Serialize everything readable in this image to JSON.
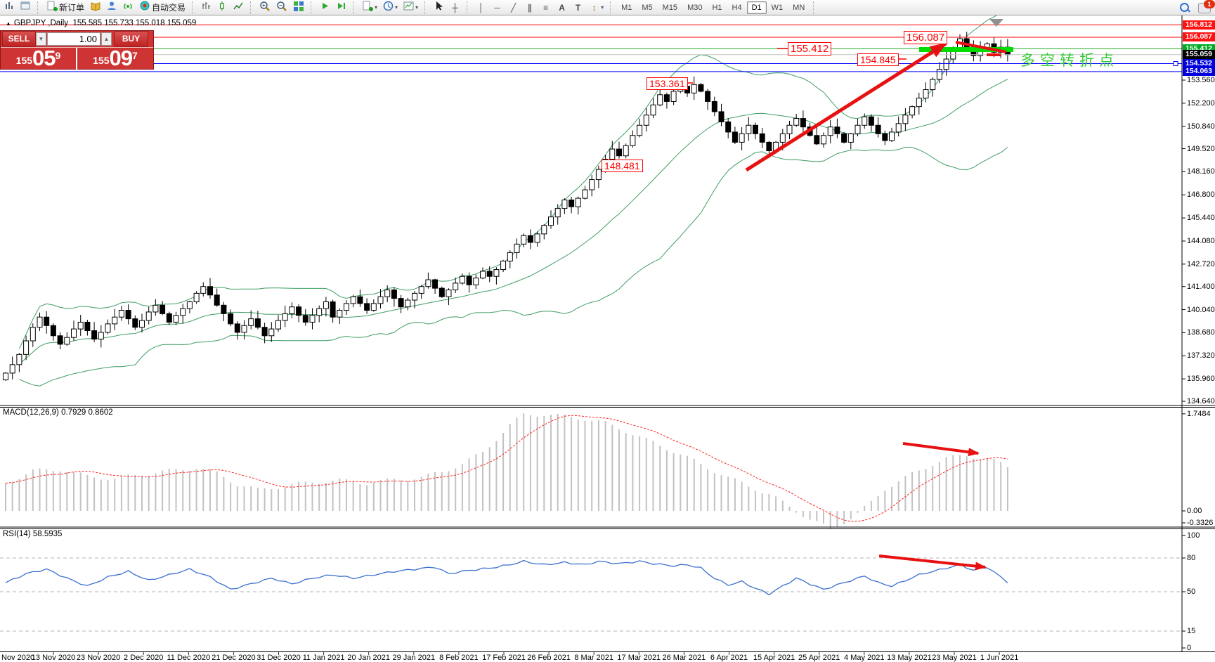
{
  "window": {
    "notification_count": "1"
  },
  "toolbar": {
    "groups": [
      [
        {
          "name": "new-chart-icon",
          "icon": "bars2",
          "color": "#6b7f93"
        },
        {
          "name": "profiles-icon",
          "icon": "window",
          "color": "#6b7f93"
        }
      ],
      [
        {
          "name": "new-order-button",
          "icon": "plusdoc",
          "label": "新订单"
        },
        {
          "name": "history-center-icon",
          "icon": "book",
          "color": "#d9a21b"
        },
        {
          "name": "market-watch-icon",
          "icon": "person",
          "color": "#3b74c9"
        },
        {
          "name": "signals-icon",
          "icon": "signal",
          "color": "#2faa2f"
        },
        {
          "name": "auto-trading-button",
          "icon": "robot",
          "label": "自动交易"
        }
      ],
      [
        {
          "name": "bar-chart-icon",
          "icon": "bars"
        },
        {
          "name": "candlestick-chart-icon",
          "icon": "candle"
        },
        {
          "name": "line-chart-icon",
          "icon": "linechart"
        }
      ],
      [
        {
          "name": "zoom-in-icon",
          "icon": "zoomin"
        },
        {
          "name": "zoom-out-icon",
          "icon": "zoomout"
        },
        {
          "name": "tile-windows-icon",
          "icon": "tiles"
        }
      ],
      [
        {
          "name": "auto-scroll-icon",
          "icon": "play"
        },
        {
          "name": "chart-shift-icon",
          "icon": "shift"
        }
      ],
      [
        {
          "name": "indicators-icon",
          "icon": "plusdoc",
          "caret": true
        },
        {
          "name": "periods-icon",
          "icon": "clock",
          "caret": true
        },
        {
          "name": "templates-icon",
          "icon": "template",
          "caret": true
        }
      ],
      [
        {
          "name": "cursor-icon",
          "icon": "cursor"
        },
        {
          "name": "crosshair-icon",
          "glyph": "┼",
          "color": "#333"
        }
      ],
      [
        {
          "name": "vertical-line-icon",
          "glyph": "│",
          "color": "#555"
        },
        {
          "name": "horizontal-line-icon",
          "glyph": "─",
          "color": "#555"
        },
        {
          "name": "trendline-icon",
          "glyph": "╱",
          "color": "#555"
        },
        {
          "name": "equidistant-channel-icon",
          "glyph": "∥",
          "color": "#555"
        },
        {
          "name": "fibonacci-icon",
          "glyph": "≡",
          "color": "#555"
        },
        {
          "name": "text-icon",
          "glyph": "A",
          "color": "#444"
        },
        {
          "name": "label-icon",
          "glyph": "T",
          "color": "#444"
        },
        {
          "name": "arrows-icon",
          "glyph": "↕",
          "color": "#b06a2a",
          "caret": true
        }
      ]
    ],
    "timeframes": [
      "M1",
      "M5",
      "M15",
      "M30",
      "H1",
      "H4",
      "D1",
      "W1",
      "MN"
    ],
    "active_timeframe": "D1"
  },
  "chart": {
    "symbol_period": "GBPJPY ,Daily",
    "ohlc": "155.585 155.733 155.018 155.059"
  },
  "trade_panel": {
    "sell_label": "SELL",
    "buy_label": "BUY",
    "volume": "1.00",
    "bid": {
      "prefix": "155",
      "big": "05",
      "sup": "9"
    },
    "ask": {
      "prefix": "155",
      "big": "09",
      "sup": "7"
    }
  },
  "annotations": {
    "box_156087": "156.087",
    "box_155412": "155.412",
    "box_154845": "154.845",
    "box_153361": "153.361",
    "box_148481": "148.481",
    "note_cn": "多空转折点"
  },
  "indicators": {
    "macd_title": "MACD(12,26,9)",
    "macd_main": "0.7929",
    "macd_signal": "0.8602",
    "rsi_title": "RSI(14)",
    "rsi_value": "58.5935"
  },
  "axis": {
    "main_ticks": [
      "153.560",
      "152.200",
      "150.840",
      "149.520",
      "148.160",
      "146.800",
      "145.440",
      "144.080",
      "142.720",
      "141.400",
      "140.040",
      "138.680",
      "137.320",
      "135.960",
      "134.640"
    ],
    "badges": [
      {
        "text": "156.812",
        "price": 156.812,
        "bg": "#ff1111"
      },
      {
        "text": "156.087",
        "price": 156.087,
        "bg": "#ff1111"
      },
      {
        "text": "155.412",
        "price": 155.412,
        "bg": "#00aa22"
      },
      {
        "text": "155.059",
        "price": 155.059,
        "bg": "#000000"
      },
      {
        "text": "154.532",
        "price": 154.532,
        "bg": "#0000dd"
      },
      {
        "text": "154.063",
        "price": 154.063,
        "bg": "#0000dd"
      }
    ],
    "macd_ticks": [
      {
        "text": "1.7484",
        "v": 1.7484
      },
      {
        "text": "0.00",
        "v": 0
      },
      {
        "text": "-0.3326",
        "v": -0.3326
      }
    ],
    "rsi_ticks": [
      {
        "text": "100",
        "v": 100
      },
      {
        "text": "80",
        "v": 80
      },
      {
        "text": "50",
        "v": 50
      },
      {
        "text": "15",
        "v": 15
      },
      {
        "text": "0",
        "v": 0
      }
    ]
  },
  "dates": [
    "Nov 2020",
    "13 Nov 2020",
    "23 Nov 2020",
    "2 Dec 2020",
    "11 Dec 2020",
    "21 Dec 2020",
    "31 Dec 2020",
    "11 Jan 2021",
    "20 Jan 2021",
    "29 Jan 2021",
    "8 Feb 2021",
    "17 Feb 2021",
    "26 Feb 2021",
    "8 Mar 2021",
    "17 Mar 2021",
    "26 Mar 2021",
    "6 Apr 2021",
    "15 Apr 2021",
    "25 Apr 2021",
    "4 May 2021",
    "13 May 2021",
    "23 May 2021",
    "1 Jun 2021"
  ],
  "chart_data": {
    "type": "candlestick",
    "symbol": "GBPJPY",
    "timeframe": "Daily",
    "price_axis_range": [
      134.2,
      157.3
    ],
    "closes": [
      136.3,
      136.8,
      137.4,
      138.2,
      139.0,
      139.6,
      139.1,
      138.5,
      138.0,
      138.4,
      138.9,
      139.3,
      138.8,
      138.3,
      138.7,
      139.2,
      139.6,
      140.0,
      139.5,
      139.0,
      139.4,
      139.9,
      140.3,
      139.8,
      139.3,
      139.7,
      140.1,
      140.5,
      141.0,
      141.4,
      140.9,
      140.3,
      139.8,
      139.2,
      138.7,
      139.1,
      139.5,
      139.0,
      138.5,
      138.9,
      139.4,
      139.8,
      140.2,
      139.7,
      139.3,
      139.7,
      140.1,
      140.5,
      139.6,
      140.0,
      140.4,
      140.8,
      140.4,
      140.0,
      140.4,
      140.8,
      141.2,
      140.7,
      140.2,
      140.6,
      141.0,
      141.4,
      141.8,
      141.3,
      140.8,
      141.2,
      141.6,
      142.0,
      141.5,
      141.9,
      142.3,
      142.0,
      142.4,
      142.9,
      143.4,
      143.9,
      144.4,
      144.0,
      144.5,
      145.0,
      145.5,
      146.0,
      146.5,
      146.1,
      146.6,
      147.1,
      147.7,
      148.3,
      148.9,
      149.5,
      149.1,
      149.7,
      150.3,
      150.9,
      151.5,
      152.1,
      152.7,
      152.3,
      152.9,
      153.2,
      152.8,
      153.3,
      152.9,
      152.3,
      151.7,
      151.1,
      150.5,
      149.9,
      150.4,
      150.9,
      150.4,
      149.9,
      149.4,
      149.9,
      150.4,
      150.9,
      151.3,
      150.8,
      150.3,
      149.8,
      150.3,
      150.8,
      150.4,
      149.9,
      150.4,
      150.9,
      151.4,
      150.9,
      150.4,
      150.0,
      150.5,
      151.0,
      151.5,
      152.0,
      152.5,
      153.0,
      153.6,
      154.2,
      154.8,
      155.4,
      156.0,
      155.5,
      155.0,
      155.4,
      155.7,
      155.2,
      155.5,
      155.06
    ],
    "bollinger_period": 20,
    "hlines": [
      {
        "price": 156.812,
        "color": "#ff0000"
      },
      {
        "price": 156.087,
        "color": "#ff0000"
      },
      {
        "price": 155.412,
        "color": "#22aa22"
      },
      {
        "price": 155.059,
        "color": "#c4c4c4"
      },
      {
        "price": 154.532,
        "color": "#0000ff"
      },
      {
        "price": 154.063,
        "color": "#0000ff"
      }
    ],
    "macd": {
      "params": "12,26,9",
      "range": [
        -0.3326,
        1.7484
      ],
      "anchors": [
        [
          0,
          0.5
        ],
        [
          4,
          0.72
        ],
        [
          8,
          0.75
        ],
        [
          12,
          0.62
        ],
        [
          16,
          0.58
        ],
        [
          20,
          0.66
        ],
        [
          24,
          0.72
        ],
        [
          28,
          0.78
        ],
        [
          31,
          0.68
        ],
        [
          34,
          0.48
        ],
        [
          37,
          0.38
        ],
        [
          41,
          0.45
        ],
        [
          45,
          0.52
        ],
        [
          49,
          0.55
        ],
        [
          53,
          0.5
        ],
        [
          57,
          0.56
        ],
        [
          61,
          0.6
        ],
        [
          64,
          0.7
        ],
        [
          67,
          0.85
        ],
        [
          70,
          1.05
        ],
        [
          72,
          1.3
        ],
        [
          74,
          1.55
        ],
        [
          76,
          1.73
        ],
        [
          79,
          1.74
        ],
        [
          82,
          1.7
        ],
        [
          85,
          1.66
        ],
        [
          88,
          1.58
        ],
        [
          91,
          1.44
        ],
        [
          94,
          1.28
        ],
        [
          96,
          1.18
        ],
        [
          99,
          1.02
        ],
        [
          101,
          0.9
        ],
        [
          104,
          0.72
        ],
        [
          106,
          0.6
        ],
        [
          109,
          0.45
        ],
        [
          112,
          0.3
        ],
        [
          114,
          0.15
        ],
        [
          116,
          0.0
        ],
        [
          118,
          -0.15
        ],
        [
          121,
          -0.33
        ],
        [
          123,
          -0.2
        ],
        [
          125,
          -0.05
        ],
        [
          127,
          0.15
        ],
        [
          129,
          0.4
        ],
        [
          132,
          0.6
        ],
        [
          134,
          0.72
        ],
        [
          136,
          0.85
        ],
        [
          138,
          0.95
        ],
        [
          141,
          1.0
        ],
        [
          143,
          0.96
        ],
        [
          145,
          0.9
        ],
        [
          147,
          0.79
        ]
      ]
    },
    "rsi": {
      "period": 14,
      "levels": [
        80,
        50,
        15
      ],
      "anchors": [
        [
          0,
          58
        ],
        [
          3,
          66
        ],
        [
          6,
          70
        ],
        [
          9,
          62
        ],
        [
          12,
          55
        ],
        [
          15,
          63
        ],
        [
          18,
          68
        ],
        [
          21,
          60
        ],
        [
          24,
          65
        ],
        [
          27,
          70
        ],
        [
          30,
          63
        ],
        [
          33,
          52
        ],
        [
          36,
          57
        ],
        [
          39,
          62
        ],
        [
          42,
          57
        ],
        [
          45,
          62
        ],
        [
          48,
          65
        ],
        [
          51,
          62
        ],
        [
          54,
          65
        ],
        [
          57,
          68
        ],
        [
          60,
          70
        ],
        [
          63,
          72
        ],
        [
          65,
          66
        ],
        [
          68,
          69
        ],
        [
          71,
          71
        ],
        [
          74,
          74
        ],
        [
          76,
          77
        ],
        [
          79,
          74
        ],
        [
          82,
          76
        ],
        [
          85,
          74
        ],
        [
          87,
          77
        ],
        [
          90,
          75
        ],
        [
          93,
          77
        ],
        [
          95,
          75
        ],
        [
          98,
          73
        ],
        [
          100,
          74
        ],
        [
          102,
          71
        ],
        [
          104,
          62
        ],
        [
          106,
          56
        ],
        [
          108,
          59
        ],
        [
          110,
          53
        ],
        [
          112,
          48
        ],
        [
          114,
          55
        ],
        [
          116,
          62
        ],
        [
          118,
          57
        ],
        [
          120,
          52
        ],
        [
          122,
          56
        ],
        [
          124,
          60
        ],
        [
          126,
          64
        ],
        [
          128,
          58
        ],
        [
          130,
          55
        ],
        [
          132,
          60
        ],
        [
          134,
          65
        ],
        [
          136,
          68
        ],
        [
          138,
          71
        ],
        [
          140,
          74
        ],
        [
          142,
          69
        ],
        [
          144,
          72
        ],
        [
          146,
          63
        ],
        [
          147,
          58.6
        ]
      ]
    }
  }
}
